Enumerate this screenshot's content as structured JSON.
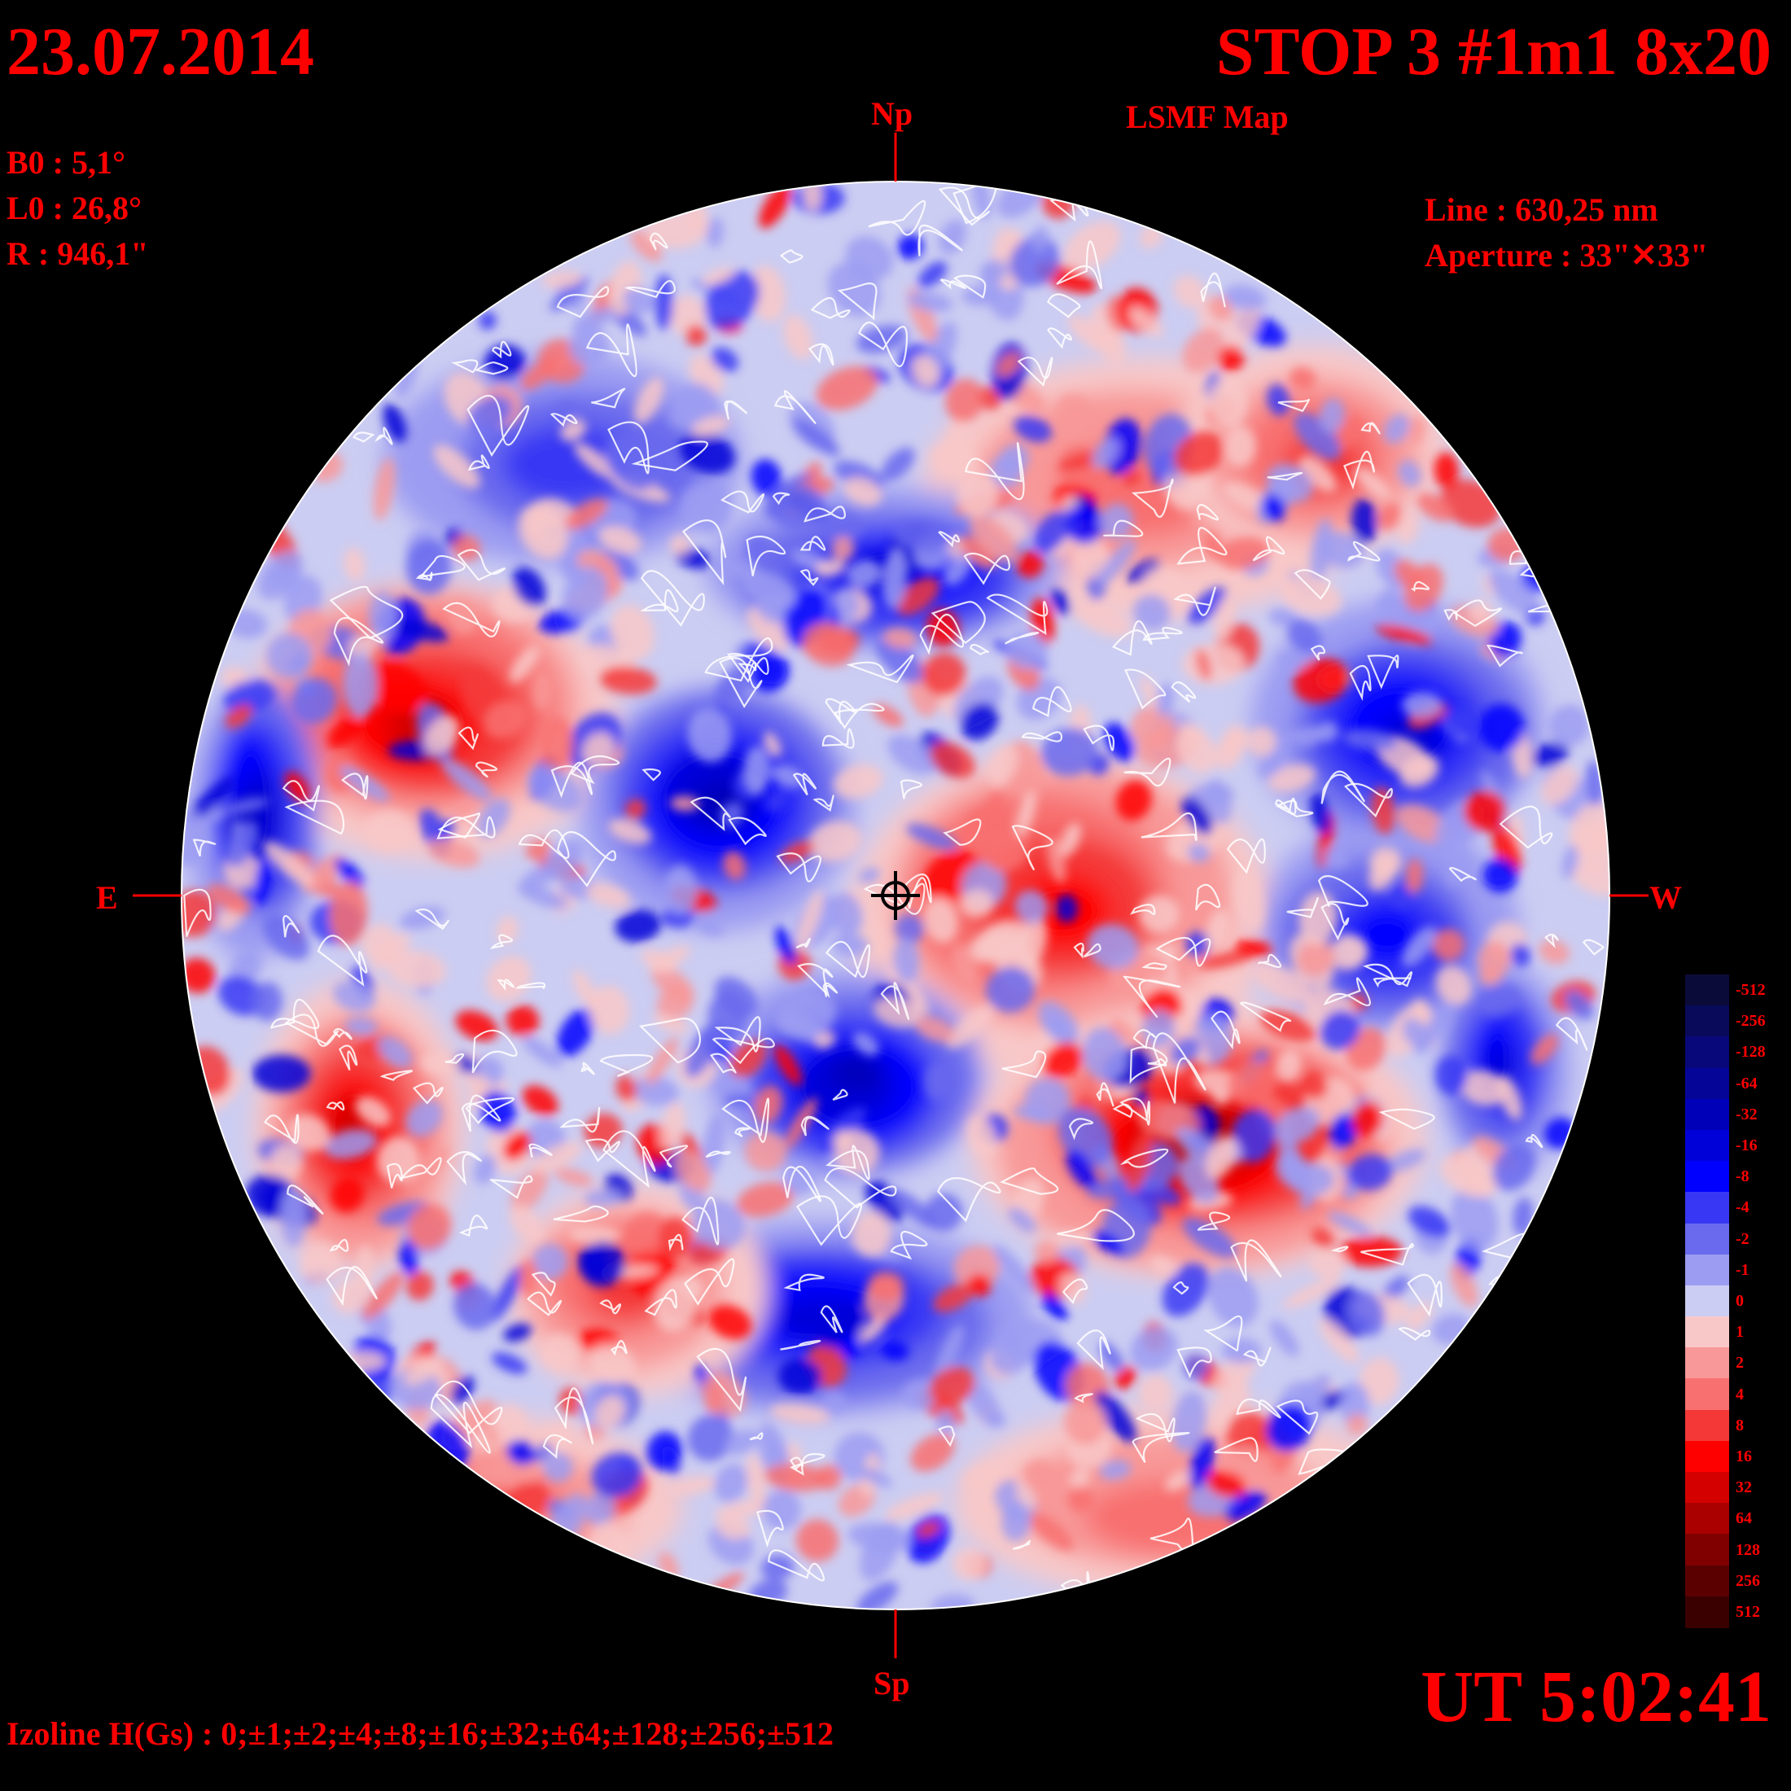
{
  "header": {
    "date": "23.07.2014",
    "title": "STOP 3 #1m1 8x20",
    "subtitle": "LSMF  Map"
  },
  "params": {
    "b0": "B0 : 5,1°",
    "l0": "L0 : 26,8°",
    "r": "R  : 946,1\"",
    "line": "Line :  630,25 nm",
    "aperture": "Aperture : 33\"✕33\""
  },
  "directions": {
    "north": "Np",
    "south": "Sp",
    "east": "E",
    "west": "W"
  },
  "footer": {
    "ut": "UT 5:02:41",
    "izoline": "Izoline H(Gs) : 0;±1;±2;±4;±8;±16;±32;±64;±128;±256;±512"
  },
  "colorbar": {
    "levels": [
      {
        "label": "-512",
        "color": "#0b0b3a"
      },
      {
        "label": "-256",
        "color": "#0a0a5a"
      },
      {
        "label": "-128",
        "color": "#08087a"
      },
      {
        "label": "-64",
        "color": "#050598"
      },
      {
        "label": "-32",
        "color": "#0000b8"
      },
      {
        "label": "-16",
        "color": "#0000d8"
      },
      {
        "label": "-8",
        "color": "#0000ff"
      },
      {
        "label": "-4",
        "color": "#3838f4"
      },
      {
        "label": "-2",
        "color": "#6a6aee"
      },
      {
        "label": "-1",
        "color": "#9c9cf2"
      },
      {
        "label": "0",
        "color": "#cccdf2"
      },
      {
        "label": "1",
        "color": "#f8c8c8"
      },
      {
        "label": "2",
        "color": "#f89898"
      },
      {
        "label": "4",
        "color": "#f87070"
      },
      {
        "label": "8",
        "color": "#f43838"
      },
      {
        "label": "16",
        "color": "#ff0000"
      },
      {
        "label": "32",
        "color": "#d40000"
      },
      {
        "label": "64",
        "color": "#aa0000"
      },
      {
        "label": "128",
        "color": "#800000"
      },
      {
        "label": "256",
        "color": "#5a0000"
      },
      {
        "label": "512",
        "color": "#3a0000"
      }
    ]
  },
  "colors": {
    "accent": "#ff0000",
    "background": "#000000",
    "contour": "#ffffff"
  },
  "map_regions": [
    {
      "polarity": "positive",
      "strength": 16,
      "area": "east mid-latitude north"
    },
    {
      "polarity": "negative",
      "strength": 32,
      "area": "center-north"
    },
    {
      "polarity": "positive",
      "strength": 64,
      "area": "south-west near center"
    },
    {
      "polarity": "negative",
      "strength": 32,
      "area": "west north"
    },
    {
      "polarity": "negative",
      "strength": 16,
      "area": "south central band"
    },
    {
      "polarity": "positive",
      "strength": 8,
      "area": "north-west limb"
    }
  ]
}
